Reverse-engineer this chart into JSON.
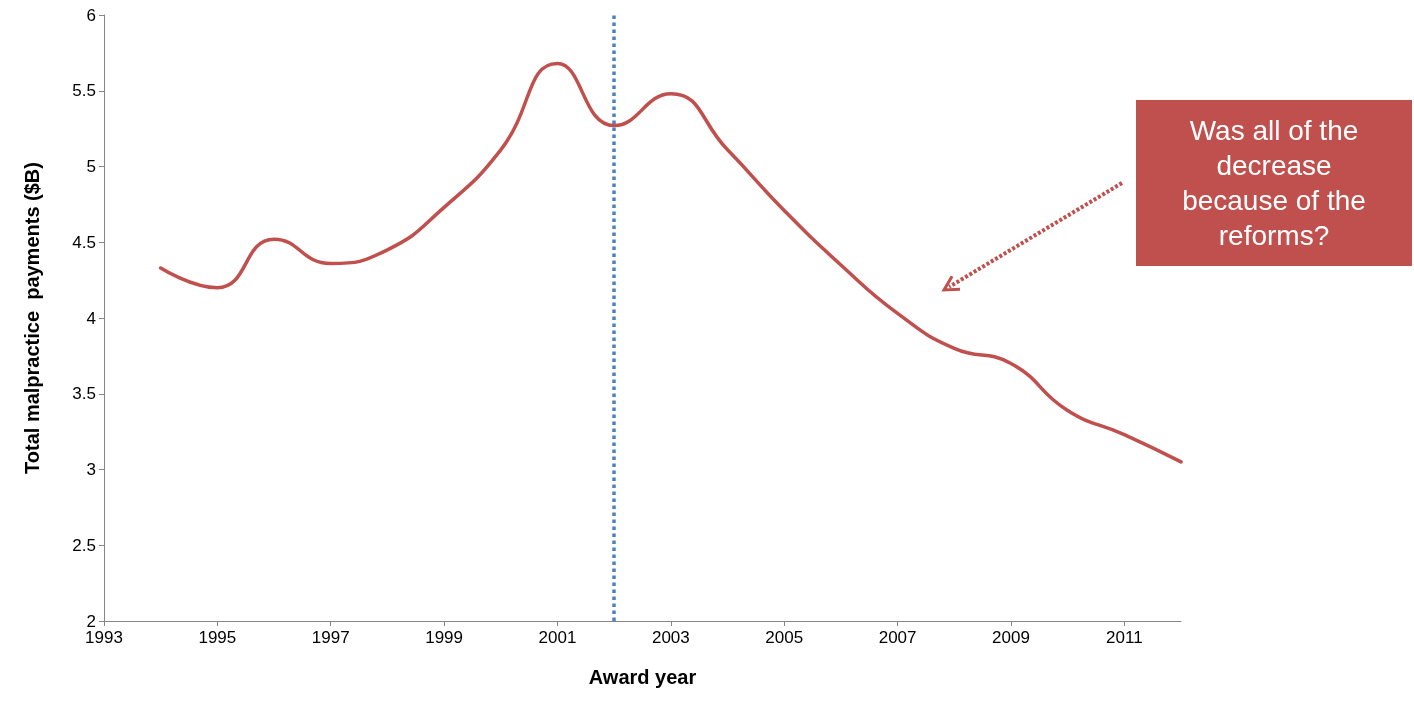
{
  "chart_data": {
    "type": "line",
    "xlabel": "Award year",
    "ylabel": "Total malpractice  payments ($B)",
    "x": [
      1994,
      1995,
      1996,
      1997,
      1998,
      1999,
      2000,
      2001,
      2002,
      2003,
      2004,
      2005,
      2006,
      2007,
      2008,
      2009,
      2010,
      2011,
      2012
    ],
    "series": [
      {
        "color": "#c0504d",
        "values": [
          4.33,
          4.2,
          4.52,
          4.36,
          4.45,
          4.73,
          5.11,
          5.68,
          5.27,
          5.48,
          5.11,
          4.71,
          4.35,
          4.03,
          3.8,
          3.7,
          3.39,
          3.23,
          3.05
        ]
      }
    ],
    "xlim": [
      1993,
      2012
    ],
    "xticks": [
      1993,
      1995,
      1997,
      1999,
      2001,
      2003,
      2005,
      2007,
      2009,
      2011
    ],
    "ylim": [
      2,
      6
    ],
    "yticks": [
      2,
      2.5,
      3,
      3.5,
      4,
      4.5,
      5,
      5.5,
      6
    ],
    "ref_lines": [
      {
        "axis": "x",
        "value": 2002,
        "color": "#4f81bd",
        "line_style": "dotted"
      }
    ],
    "annotations": [
      "Was all of the decrease because of the reforms?"
    ],
    "grid": false,
    "marker": "none",
    "line_style": "solid"
  }
}
